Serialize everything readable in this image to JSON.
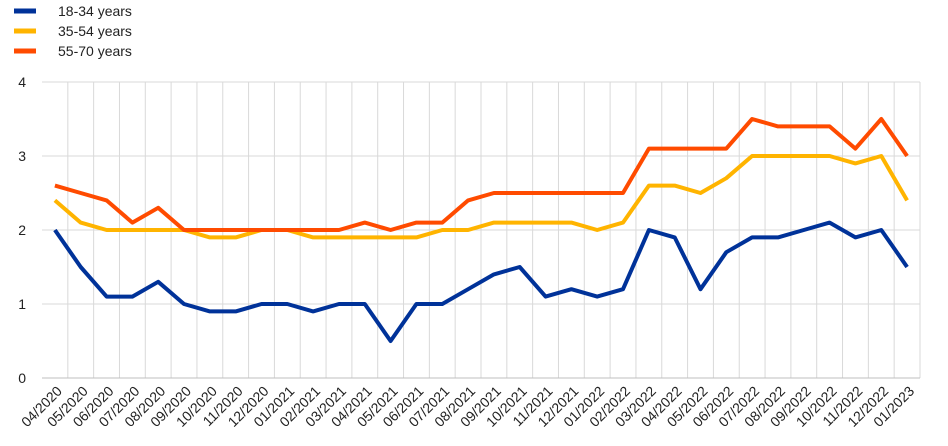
{
  "chart_data": {
    "type": "line",
    "title": "",
    "xlabel": "",
    "ylabel": "",
    "ylim": [
      0,
      4
    ],
    "yticks": [
      "0",
      "1",
      "2",
      "3",
      "4"
    ],
    "grid": "vertical and horizontal light grey",
    "legend_position": "top-left",
    "categories": [
      "04/2020",
      "05/2020",
      "06/2020",
      "07/2020",
      "08/2020",
      "09/2020",
      "10/2020",
      "11/2020",
      "12/2020",
      "01/2021",
      "02/2021",
      "03/2021",
      "04/2021",
      "05/2021",
      "06/2021",
      "07/2021",
      "08/2021",
      "09/2021",
      "10/2021",
      "11/2021",
      "12/2021",
      "01/2022",
      "02/2022",
      "03/2022",
      "04/2022",
      "05/2022",
      "06/2022",
      "07/2022",
      "08/2022",
      "09/2022",
      "10/2022",
      "11/2022",
      "12/2022",
      "01/2023"
    ],
    "series": [
      {
        "name": "18-34 years",
        "color": "#003299",
        "values": [
          2.0,
          1.5,
          1.1,
          1.1,
          1.3,
          1.0,
          0.9,
          0.9,
          1.0,
          1.0,
          0.9,
          1.0,
          1.0,
          0.5,
          1.0,
          1.0,
          1.2,
          1.4,
          1.5,
          1.1,
          1.2,
          1.1,
          1.2,
          2.0,
          1.9,
          1.2,
          1.7,
          1.9,
          1.9,
          2.0,
          2.1,
          1.9,
          2.0,
          1.5
        ]
      },
      {
        "name": "35-54 years",
        "color": "#FFB400",
        "values": [
          2.4,
          2.1,
          2.0,
          2.0,
          2.0,
          2.0,
          1.9,
          1.9,
          2.0,
          2.0,
          1.9,
          1.9,
          1.9,
          1.9,
          1.9,
          2.0,
          2.0,
          2.1,
          2.1,
          2.1,
          2.1,
          2.0,
          2.1,
          2.6,
          2.6,
          2.5,
          2.7,
          3.0,
          3.0,
          3.0,
          3.0,
          2.9,
          3.0,
          2.4
        ]
      },
      {
        "name": "55-70 years",
        "color": "#FF4B00",
        "values": [
          2.6,
          2.5,
          2.4,
          2.1,
          2.3,
          2.0,
          2.0,
          2.0,
          2.0,
          2.0,
          2.0,
          2.0,
          2.1,
          2.0,
          2.1,
          2.1,
          2.4,
          2.5,
          2.5,
          2.5,
          2.5,
          2.5,
          2.5,
          3.1,
          3.1,
          3.1,
          3.1,
          3.5,
          3.4,
          3.4,
          3.4,
          3.1,
          3.5,
          3.0
        ]
      }
    ]
  }
}
